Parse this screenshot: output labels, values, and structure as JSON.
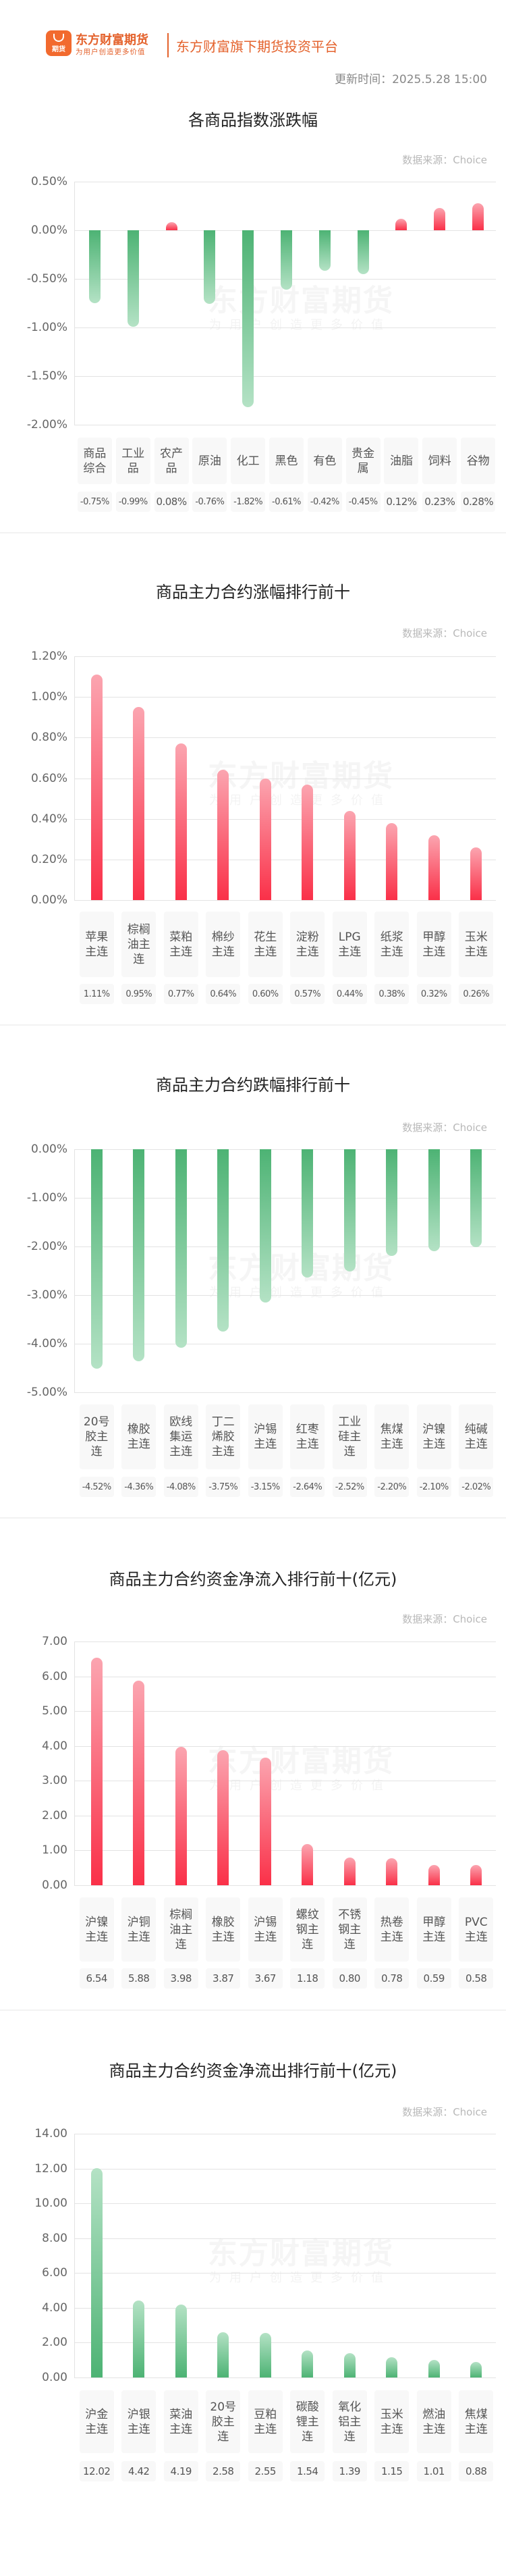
{
  "header": {
    "logo_badge_text": "期货",
    "brand_name": "东方财富期货",
    "brand_slogan": "为用户创造更多价值",
    "platform": "东方财富旗下期货投资平台",
    "update_time": "更新时间：2025.5.28 15:00"
  },
  "watermark": {
    "main": "东方财富期货",
    "sub": "为用户创造更多价值"
  },
  "source_label": "数据来源：Choice",
  "colors": {
    "up": "#fa3048",
    "down": "#4db374",
    "brand": "#e4622c"
  },
  "chart_data": [
    {
      "type": "bar",
      "title": "各商品指数涨跌幅",
      "ylabel": "",
      "xlabel": "",
      "ylim": [
        -2.0,
        0.5
      ],
      "yticks": [
        "0.50%",
        "0.00%",
        "-0.50%",
        "-1.00%",
        "-1.50%",
        "-2.00%"
      ],
      "categories": [
        "商品综合",
        "工业品",
        "农产品",
        "原油",
        "化工",
        "黑色",
        "有色",
        "贵金属",
        "油脂",
        "饲料",
        "谷物"
      ],
      "values": [
        -0.75,
        -0.99,
        0.08,
        -0.76,
        -1.82,
        -0.61,
        -0.42,
        -0.45,
        0.12,
        0.23,
        0.28
      ],
      "value_labels": [
        "-0.75%",
        "-0.99%",
        "0.08%",
        "-0.76%",
        "-1.82%",
        "-0.61%",
        "-0.42%",
        "-0.45%",
        "0.12%",
        "0.23%",
        "0.28%"
      ],
      "grid": true
    },
    {
      "type": "bar",
      "title": "商品主力合约涨幅排行前十",
      "ylim": [
        0,
        1.2
      ],
      "yticks": [
        "1.20%",
        "1.00%",
        "0.80%",
        "0.60%",
        "0.40%",
        "0.20%",
        "0.00%"
      ],
      "categories": [
        "苹果主连",
        "棕榈油主连",
        "菜粕主连",
        "棉纱主连",
        "花生主连",
        "淀粉主连",
        "LPG主连",
        "纸浆主连",
        "甲醇主连",
        "玉米主连"
      ],
      "values": [
        1.11,
        0.95,
        0.77,
        0.64,
        0.6,
        0.57,
        0.44,
        0.38,
        0.32,
        0.26
      ],
      "value_labels": [
        "1.11%",
        "0.95%",
        "0.77%",
        "0.64%",
        "0.60%",
        "0.57%",
        "0.44%",
        "0.38%",
        "0.32%",
        "0.26%"
      ],
      "grid": true
    },
    {
      "type": "bar",
      "title": "商品主力合约跌幅排行前十",
      "ylim": [
        -5.0,
        0
      ],
      "yticks": [
        "0.00%",
        "-1.00%",
        "-2.00%",
        "-3.00%",
        "-4.00%",
        "-5.00%"
      ],
      "categories": [
        "20号胶主连",
        "橡胶主连",
        "欧线集运主连",
        "丁二烯胶主连",
        "沪锡主连",
        "红枣主连",
        "工业硅主连",
        "焦煤主连",
        "沪镍主连",
        "纯碱主连"
      ],
      "values": [
        -4.52,
        -4.36,
        -4.08,
        -3.75,
        -3.15,
        -2.64,
        -2.52,
        -2.2,
        -2.1,
        -2.02
      ],
      "value_labels": [
        "-4.52%",
        "-4.36%",
        "-4.08%",
        "-3.75%",
        "-3.15%",
        "-2.64%",
        "-2.52%",
        "-2.20%",
        "-2.10%",
        "-2.02%"
      ],
      "grid": true
    },
    {
      "type": "bar",
      "title": "商品主力合约资金净流入排行前十(亿元)",
      "ylim": [
        0,
        7
      ],
      "yticks": [
        "7.00",
        "6.00",
        "5.00",
        "4.00",
        "3.00",
        "2.00",
        "1.00",
        "0.00"
      ],
      "categories": [
        "沪镍主连",
        "沪铜主连",
        "棕榈油主连",
        "橡胶主连",
        "沪锡主连",
        "螺纹钢主连",
        "不锈钢主连",
        "热卷主连",
        "甲醇主连",
        "PVC主连"
      ],
      "values": [
        6.54,
        5.88,
        3.98,
        3.87,
        3.67,
        1.18,
        0.8,
        0.78,
        0.59,
        0.58
      ],
      "value_labels": [
        "6.54",
        "5.88",
        "3.98",
        "3.87",
        "3.67",
        "1.18",
        "0.80",
        "0.78",
        "0.59",
        "0.58"
      ],
      "grid": true
    },
    {
      "type": "bar",
      "title": "商品主力合约资金净流出排行前十(亿元)",
      "ylim": [
        0,
        14
      ],
      "yticks": [
        "14.00",
        "12.00",
        "10.00",
        "8.00",
        "6.00",
        "4.00",
        "2.00",
        "0.00"
      ],
      "categories": [
        "沪金主连",
        "沪银主连",
        "菜油主连",
        "20号胶主连",
        "豆粕主连",
        "碳酸锂主连",
        "氧化铝主连",
        "玉米主连",
        "燃油主连",
        "焦煤主连"
      ],
      "values": [
        12.02,
        4.42,
        4.19,
        2.58,
        2.55,
        1.54,
        1.39,
        1.15,
        1.01,
        0.88
      ],
      "value_labels": [
        "12.02",
        "4.42",
        "4.19",
        "2.58",
        "2.55",
        "1.54",
        "1.39",
        "1.15",
        "1.01",
        "0.88"
      ],
      "grid": true
    }
  ]
}
